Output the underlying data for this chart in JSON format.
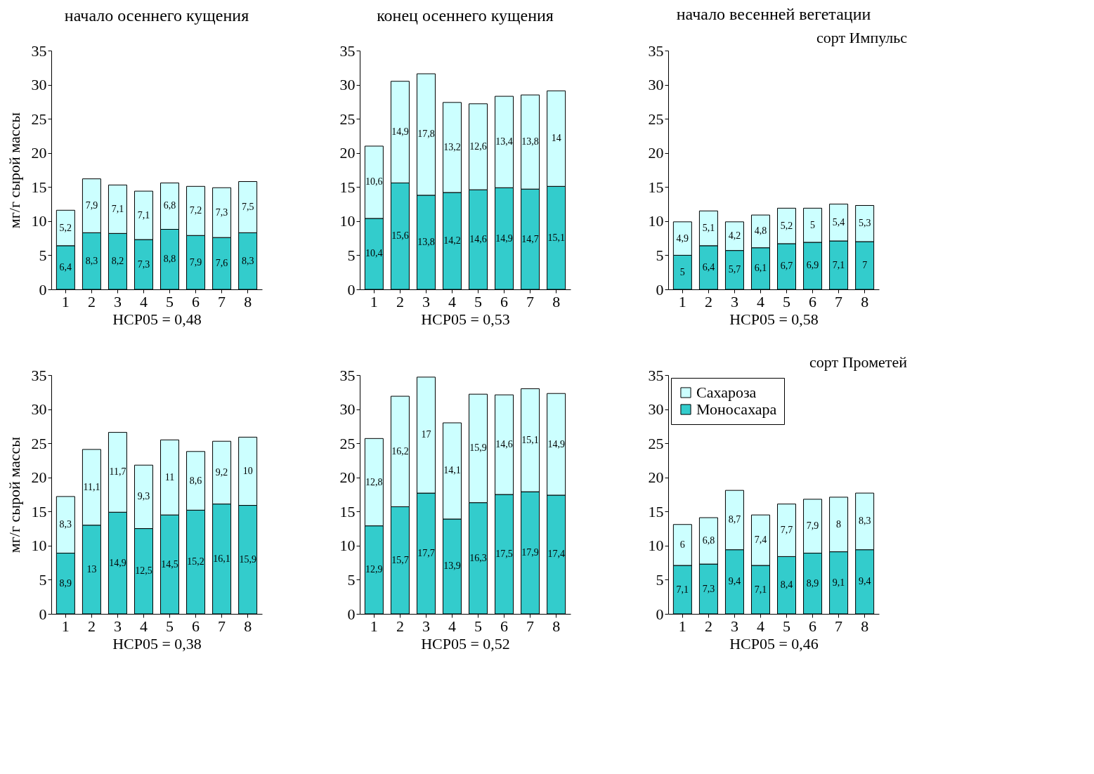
{
  "chart_data": [
    {
      "type": "bar",
      "title": "начало осеннего кущения",
      "xlabel": "НСР05 = 0,48",
      "ylabel": "мг/г сырой массы",
      "categories": [
        "1",
        "2",
        "3",
        "4",
        "5",
        "6",
        "7",
        "8"
      ],
      "stacked": true,
      "grid": false,
      "ylim": [
        0,
        35
      ],
      "yticks": [
        0,
        5,
        10,
        15,
        20,
        25,
        30,
        35
      ],
      "series": [
        {
          "color": "#33cccc",
          "values": [
            6.4,
            8.3,
            8.2,
            7.3,
            8.8,
            7.9,
            7.6,
            8.3
          ],
          "value_labels": [
            "6,4",
            "8,3",
            "8,2",
            "7,3",
            "8,8",
            "7,9",
            "7,6",
            "8,3"
          ]
        },
        {
          "color": "#ccffff",
          "values": [
            5.2,
            7.9,
            7.1,
            7.1,
            6.8,
            7.2,
            7.3,
            7.5
          ],
          "value_labels": [
            "5,2",
            "7,9",
            "7,1",
            "7,1",
            "6,8",
            "7,2",
            "7,3",
            "7,5"
          ]
        }
      ]
    },
    {
      "type": "bar",
      "title": "конец осеннего кущения",
      "xlabel": "НСР05 = 0,53",
      "categories": [
        "1",
        "2",
        "3",
        "4",
        "5",
        "6",
        "7",
        "8"
      ],
      "stacked": true,
      "grid": false,
      "ylim": [
        0,
        35
      ],
      "yticks": [
        0,
        5,
        10,
        15,
        20,
        25,
        30,
        35
      ],
      "series": [
        {
          "color": "#33cccc",
          "values": [
            10.4,
            15.6,
            13.8,
            14.2,
            14.6,
            14.9,
            14.7,
            15.1
          ],
          "value_labels": [
            "10,4",
            "15,6",
            "13,8",
            "14,2",
            "14,6",
            "14,9",
            "14,7",
            "15,1"
          ]
        },
        {
          "color": "#ccffff",
          "values": [
            10.6,
            14.9,
            17.8,
            13.2,
            12.6,
            13.4,
            13.8,
            14
          ],
          "value_labels": [
            "10,6",
            "14,9",
            "17,8",
            "13,2",
            "12,6",
            "13,4",
            "13,8",
            "14"
          ]
        }
      ]
    },
    {
      "type": "bar",
      "title": "начало весенней вегетации",
      "xlabel": "НСР05 = 0,58",
      "annotations": [
        "сорт Импульс"
      ],
      "categories": [
        "1",
        "2",
        "3",
        "4",
        "5",
        "6",
        "7",
        "8"
      ],
      "stacked": true,
      "grid": false,
      "ylim": [
        0,
        35
      ],
      "yticks": [
        0,
        5,
        10,
        15,
        20,
        25,
        30,
        35
      ],
      "series": [
        {
          "color": "#33cccc",
          "values": [
            5,
            6.4,
            5.7,
            6.1,
            6.7,
            6.9,
            7.1,
            7
          ],
          "value_labels": [
            "5",
            "6,4",
            "5,7",
            "6,1",
            "6,7",
            "6,9",
            "7,1",
            "7"
          ]
        },
        {
          "color": "#ccffff",
          "values": [
            4.9,
            5.1,
            4.2,
            4.8,
            5.2,
            5,
            5.4,
            5.3
          ],
          "value_labels": [
            "4,9",
            "5,1",
            "4,2",
            "4,8",
            "5,2",
            "5",
            "5,4",
            "5,3"
          ]
        }
      ]
    },
    {
      "type": "bar",
      "xlabel": "НСР05 = 0,38",
      "ylabel": "мг/г сырой массы",
      "categories": [
        "1",
        "2",
        "3",
        "4",
        "5",
        "6",
        "7",
        "8"
      ],
      "stacked": true,
      "grid": false,
      "ylim": [
        0,
        35
      ],
      "yticks": [
        0,
        5,
        10,
        15,
        20,
        25,
        30,
        35
      ],
      "series": [
        {
          "color": "#33cccc",
          "values": [
            8.9,
            13,
            14.9,
            12.5,
            14.5,
            15.2,
            16.1,
            15.9
          ],
          "value_labels": [
            "8,9",
            "13",
            "14,9",
            "12,5",
            "14,5",
            "15,2",
            "16,1",
            "15,9"
          ]
        },
        {
          "color": "#ccffff",
          "values": [
            8.3,
            11.1,
            11.7,
            9.3,
            11,
            8.6,
            9.2,
            10
          ],
          "value_labels": [
            "8,3",
            "11,1",
            "11,7",
            "9,3",
            "11",
            "8,6",
            "9,2",
            "10"
          ]
        }
      ]
    },
    {
      "type": "bar",
      "xlabel": "НСР05 = 0,52",
      "categories": [
        "1",
        "2",
        "3",
        "4",
        "5",
        "6",
        "7",
        "8"
      ],
      "stacked": true,
      "grid": false,
      "ylim": [
        0,
        35
      ],
      "yticks": [
        0,
        5,
        10,
        15,
        20,
        25,
        30,
        35
      ],
      "series": [
        {
          "color": "#33cccc",
          "values": [
            12.9,
            15.7,
            17.7,
            13.9,
            16.3,
            17.5,
            17.9,
            17.4
          ],
          "value_labels": [
            "12,9",
            "15,7",
            "17,7",
            "13,9",
            "16,3",
            "17,5",
            "17,9",
            "17,4"
          ]
        },
        {
          "color": "#ccffff",
          "values": [
            12.8,
            16.2,
            17,
            14.1,
            15.9,
            14.6,
            15.1,
            14.9
          ],
          "value_labels": [
            "12,8",
            "16,2",
            "17",
            "14,1",
            "15,9",
            "14,6",
            "15,1",
            "14,9"
          ]
        }
      ]
    },
    {
      "type": "bar",
      "xlabel": "НСР05 = 0,46",
      "annotations": [
        "сорт Прометей"
      ],
      "legend": "top left",
      "categories": [
        "1",
        "2",
        "3",
        "4",
        "5",
        "6",
        "7",
        "8"
      ],
      "stacked": true,
      "grid": false,
      "ylim": [
        0,
        35
      ],
      "yticks": [
        0,
        5,
        10,
        15,
        20,
        25,
        30,
        35
      ],
      "series": [
        {
          "name": "Моносахара",
          "color": "#33cccc",
          "values": [
            7.1,
            7.3,
            9.4,
            7.1,
            8.4,
            8.9,
            9.1,
            9.4
          ],
          "value_labels": [
            "7,1",
            "7,3",
            "9,4",
            "7,1",
            "8,4",
            "8,9",
            "9,1",
            "9,4"
          ]
        },
        {
          "name": "Сахароза",
          "color": "#ccffff",
          "values": [
            6,
            6.8,
            8.7,
            7.4,
            7.7,
            7.9,
            8,
            8.3
          ],
          "value_labels": [
            "6",
            "6,8",
            "8,7",
            "7,4",
            "7,7",
            "7,9",
            "8",
            "8,3"
          ]
        }
      ]
    }
  ]
}
